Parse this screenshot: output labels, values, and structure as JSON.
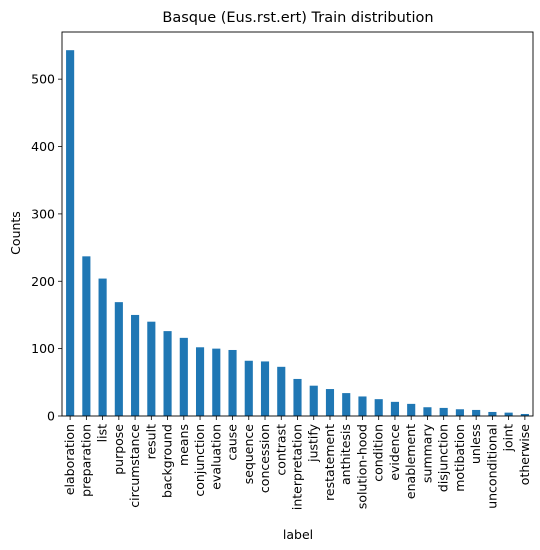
{
  "chart_data": {
    "type": "bar",
    "title": "Basque (Eus.rst.ert) Train distribution",
    "xlabel": "label",
    "ylabel": "Counts",
    "ylim": [
      0,
      570
    ],
    "yticks": [
      0,
      100,
      200,
      300,
      400,
      500
    ],
    "grid": false,
    "color": "#1f77b4",
    "categories": [
      "elaboration",
      "preparation",
      "list",
      "purpose",
      "circumstance",
      "result",
      "background",
      "means",
      "conjunction",
      "evaluation",
      "cause",
      "sequence",
      "concession",
      "contrast",
      "interpretation",
      "justify",
      "restatement",
      "anthitesis",
      "solution-hood",
      "condition",
      "evidence",
      "enablement",
      "summary",
      "disjunction",
      "motibation",
      "unless",
      "unconditional",
      "joint",
      "otherwise"
    ],
    "values": [
      543,
      237,
      204,
      169,
      150,
      140,
      126,
      116,
      102,
      100,
      98,
      82,
      81,
      73,
      55,
      45,
      40,
      34,
      29,
      25,
      21,
      18,
      13,
      12,
      10,
      9,
      6,
      5,
      3
    ]
  }
}
